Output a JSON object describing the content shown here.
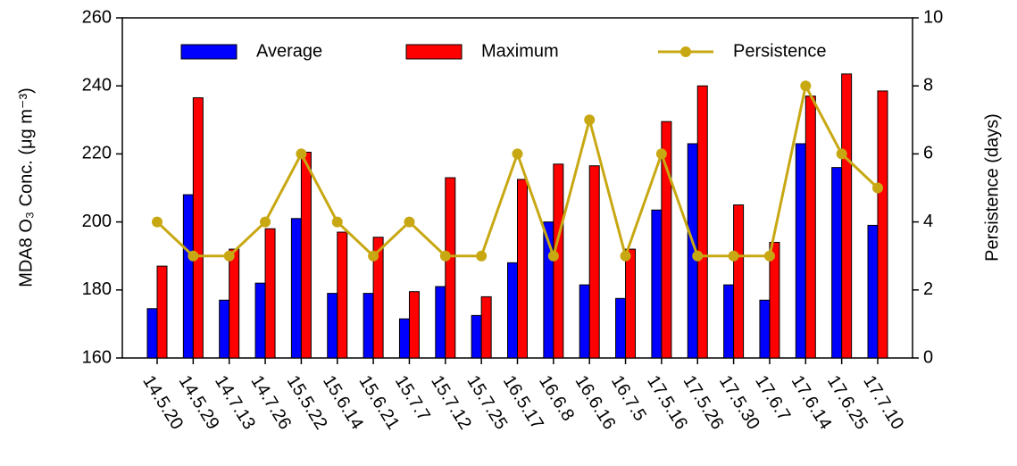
{
  "chart_data": {
    "type": "bar_line",
    "categories": [
      "14.5.20",
      "14.5.29",
      "14.7.13",
      "14.7.26",
      "15.5.22",
      "15.6.14",
      "15.6.21",
      "15.7.7",
      "15.7.12",
      "15.7.25",
      "16.5.17",
      "16.6.8",
      "16.6.16",
      "16.7.5",
      "17.5.16",
      "17.5.26",
      "17.5.30",
      "17.6.7",
      "17.6.14",
      "17.6.25",
      "17.7.10"
    ],
    "series": [
      {
        "name": "Average",
        "color": "#0000ff",
        "type": "bar",
        "values": [
          174.5,
          208,
          177,
          182,
          201,
          179,
          179,
          171.5,
          181,
          172.5,
          188,
          200,
          181.5,
          177.5,
          203.5,
          223,
          181.5,
          177,
          223,
          216,
          199
        ]
      },
      {
        "name": "Maximum",
        "color": "#ff0000",
        "type": "bar",
        "values": [
          187,
          236.5,
          192,
          198,
          220.5,
          197,
          195.5,
          179.5,
          213,
          178,
          212.5,
          217,
          216.5,
          192,
          229.5,
          240,
          205,
          194,
          237,
          243.5,
          238.5
        ]
      },
      {
        "name": "Persistence",
        "color": "#c8a812",
        "type": "line",
        "axis": "y2",
        "values": [
          4,
          3,
          3,
          4,
          6,
          4,
          3,
          4,
          3,
          3,
          6,
          3,
          7,
          3,
          6,
          3,
          3,
          3,
          8,
          6,
          5
        ]
      }
    ],
    "y_label": "MDA8 O₃ Conc. (μg m⁻³)",
    "y2_label": "Persistence (days)",
    "ylim": [
      160,
      260
    ],
    "yticks": [
      160,
      180,
      200,
      220,
      240,
      260
    ],
    "y2lim": [
      0,
      10
    ],
    "y2ticks": [
      0,
      2,
      4,
      6,
      8,
      10
    ],
    "legend": "top"
  }
}
